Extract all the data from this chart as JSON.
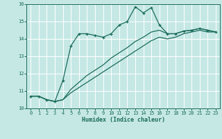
{
  "xlabel": "Humidex (Indice chaleur)",
  "ylabel": "",
  "xlim": [
    -0.5,
    23.5
  ],
  "ylim": [
    10,
    16
  ],
  "bg_color": "#c5e8e5",
  "grid_color": "#ffffff",
  "line_color": "#1a6b5a",
  "xticks": [
    0,
    1,
    2,
    3,
    4,
    5,
    6,
    7,
    8,
    9,
    10,
    11,
    12,
    13,
    14,
    15,
    16,
    17,
    18,
    19,
    20,
    21,
    22,
    23
  ],
  "yticks": [
    10,
    11,
    12,
    13,
    14,
    15,
    16
  ],
  "series1_x": [
    0,
    1,
    2,
    3,
    4,
    5,
    6,
    7,
    8,
    9,
    10,
    11,
    12,
    13,
    14,
    15,
    16,
    17,
    18,
    19,
    20,
    21,
    22,
    23
  ],
  "series1_y": [
    10.7,
    10.7,
    10.5,
    10.4,
    11.6,
    13.6,
    14.3,
    14.3,
    14.2,
    14.1,
    14.3,
    14.8,
    15.0,
    15.85,
    15.5,
    15.8,
    14.8,
    14.3,
    14.3,
    14.45,
    14.5,
    14.6,
    14.5,
    14.4
  ],
  "series2_x": [
    0,
    1,
    2,
    3,
    4,
    5,
    6,
    7,
    8,
    9,
    10,
    11,
    12,
    13,
    14,
    15,
    16,
    17,
    18,
    19,
    20,
    21,
    22,
    23
  ],
  "series2_y": [
    10.7,
    10.7,
    10.5,
    10.4,
    10.5,
    11.1,
    11.5,
    11.9,
    12.2,
    12.5,
    12.9,
    13.2,
    13.5,
    13.85,
    14.1,
    14.4,
    14.5,
    14.3,
    14.3,
    14.45,
    14.5,
    14.6,
    14.5,
    14.4
  ],
  "series3_x": [
    0,
    1,
    2,
    3,
    4,
    5,
    6,
    7,
    8,
    9,
    10,
    11,
    12,
    13,
    14,
    15,
    16,
    17,
    18,
    19,
    20,
    21,
    22,
    23
  ],
  "series3_y": [
    10.7,
    10.7,
    10.5,
    10.4,
    10.5,
    10.9,
    11.2,
    11.5,
    11.8,
    12.1,
    12.4,
    12.7,
    13.0,
    13.3,
    13.6,
    13.9,
    14.1,
    14.0,
    14.1,
    14.3,
    14.4,
    14.5,
    14.4,
    14.4
  ],
  "tick_fontsize": 5.0,
  "xlabel_fontsize": 6.0
}
